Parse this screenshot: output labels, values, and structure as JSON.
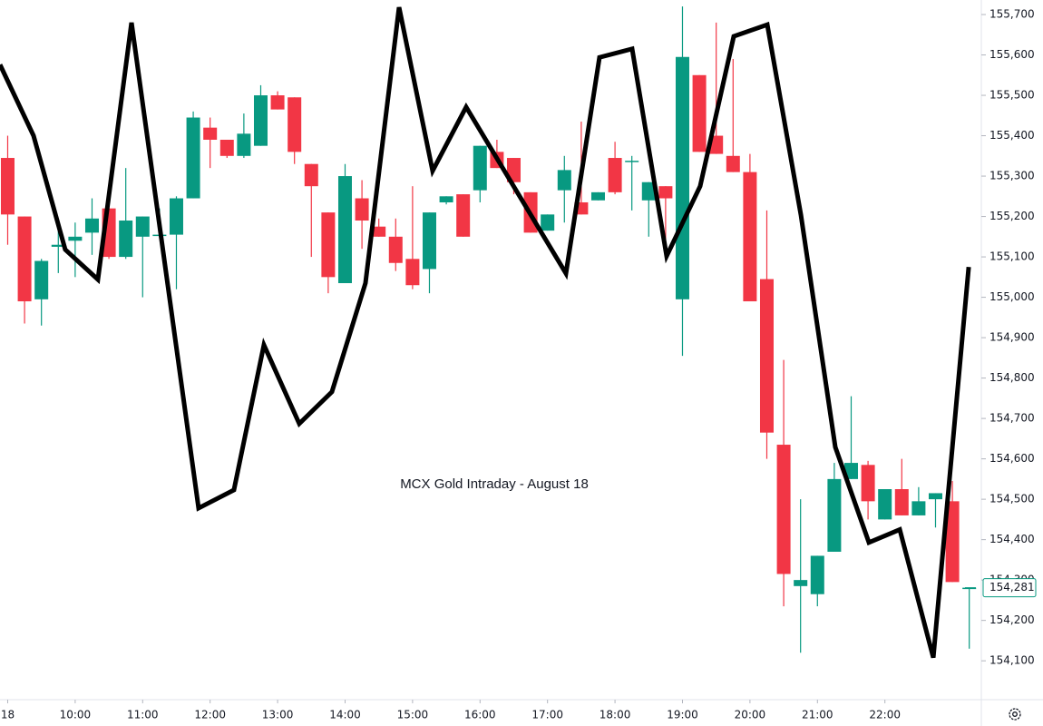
{
  "chart_data": {
    "type": "candlestick",
    "title": "MCX Gold Intraday - August 18",
    "up_color": "#089981",
    "down_color": "#f23645",
    "xlim": [
      8.886,
      23.402
    ],
    "ylim": [
      154006,
      155736
    ],
    "xticks": [
      {
        "value": 9,
        "label": "18"
      },
      {
        "value": 10,
        "label": "10:00"
      },
      {
        "value": 11,
        "label": "11:00"
      },
      {
        "value": 12,
        "label": "12:00"
      },
      {
        "value": 13,
        "label": "13:00"
      },
      {
        "value": 14,
        "label": "14:00"
      },
      {
        "value": 15,
        "label": "15:00"
      },
      {
        "value": 16,
        "label": "16:00"
      },
      {
        "value": 17,
        "label": "17:00"
      },
      {
        "value": 18,
        "label": "18:00"
      },
      {
        "value": 19,
        "label": "19:00"
      },
      {
        "value": 20,
        "label": "20:00"
      },
      {
        "value": 21,
        "label": "21:00"
      },
      {
        "value": 22,
        "label": "22:00"
      }
    ],
    "yticks": [
      {
        "value": 154100,
        "label": "154,100"
      },
      {
        "value": 154200,
        "label": "154,200"
      },
      {
        "value": 154300,
        "label": "154,300"
      },
      {
        "value": 154400,
        "label": "154,400"
      },
      {
        "value": 154500,
        "label": "154,500"
      },
      {
        "value": 154600,
        "label": "154,600"
      },
      {
        "value": 154700,
        "label": "154,700"
      },
      {
        "value": 154800,
        "label": "154,800"
      },
      {
        "value": 154900,
        "label": "154,900"
      },
      {
        "value": 155000,
        "label": "155,000"
      },
      {
        "value": 155100,
        "label": "155,100"
      },
      {
        "value": 155200,
        "label": "155,200"
      },
      {
        "value": 155300,
        "label": "155,300"
      },
      {
        "value": 155400,
        "label": "155,400"
      },
      {
        "value": 155500,
        "label": "155,500"
      },
      {
        "value": 155600,
        "label": "155,600"
      },
      {
        "value": 155700,
        "label": "155,700"
      }
    ],
    "last_price": {
      "value": 154281,
      "label": "154,281"
    },
    "candles": {
      "x": [
        9,
        9.25,
        9.5,
        9.75,
        10,
        10.25,
        10.5,
        10.75,
        11,
        11.25,
        11.5,
        11.75,
        12,
        12.25,
        12.5,
        12.75,
        13,
        13.25,
        13.5,
        13.75,
        14,
        14.25,
        14.5,
        14.75,
        15,
        15.25,
        15.5,
        15.75,
        16,
        16.25,
        16.5,
        16.75,
        17,
        17.25,
        17.5,
        17.75,
        18,
        18.25,
        18.5,
        18.75,
        19,
        19.25,
        19.5,
        19.75,
        20,
        20.25,
        20.5,
        20.75,
        21,
        21.25,
        21.5,
        21.75,
        22,
        22.25,
        22.5,
        22.75,
        23,
        23.25
      ],
      "open": [
        155345,
        155200,
        154995,
        155125,
        155140,
        155160,
        155220,
        155100,
        155150,
        155155,
        155155,
        155245,
        155420,
        155390,
        155350,
        155375,
        155500,
        155495,
        155330,
        155210,
        155035,
        155245,
        155175,
        155150,
        155095,
        155070,
        155235,
        155255,
        155265,
        155360,
        155345,
        155260,
        155165,
        155265,
        155235,
        155240,
        155345,
        155335,
        155240,
        155275,
        154995,
        155550,
        155400,
        155350,
        155310,
        155045,
        154635,
        154285,
        154265,
        154370,
        154550,
        154585,
        154450,
        154525,
        154460,
        154500,
        154495,
        154280
      ],
      "high": [
        155400,
        155200,
        155095,
        155185,
        155185,
        155245,
        155225,
        155320,
        155200,
        155220,
        155250,
        155460,
        155445,
        155390,
        155455,
        155525,
        155510,
        155495,
        155330,
        155210,
        155330,
        155290,
        155195,
        155195,
        155275,
        155210,
        155250,
        155255,
        155375,
        155390,
        155345,
        155260,
        155205,
        155350,
        155435,
        155260,
        155385,
        155350,
        155285,
        155275,
        155720,
        155550,
        155680,
        155590,
        155355,
        155215,
        154845,
        154500,
        154360,
        154590,
        154755,
        154595,
        154525,
        154600,
        154530,
        154515,
        154545,
        154281
      ],
      "low": [
        155130,
        154935,
        154930,
        155060,
        155050,
        155105,
        155095,
        155095,
        155000,
        155150,
        155020,
        155245,
        155320,
        155345,
        155345,
        155375,
        155465,
        155330,
        155100,
        155010,
        155035,
        155120,
        155150,
        155065,
        155020,
        155010,
        155230,
        155150,
        155235,
        155320,
        155255,
        155160,
        155165,
        155185,
        155205,
        155240,
        155255,
        155215,
        155150,
        155100,
        154855,
        155360,
        155355,
        155310,
        154990,
        154600,
        154235,
        154120,
        154235,
        154370,
        154550,
        154450,
        154450,
        154460,
        154460,
        154430,
        154295,
        154130
      ],
      "close": [
        155205,
        154990,
        155090,
        155130,
        155150,
        155195,
        155100,
        155190,
        155200,
        155155,
        155245,
        155445,
        155390,
        155350,
        155405,
        155500,
        155465,
        155360,
        155275,
        155050,
        155300,
        155190,
        155150,
        155085,
        155030,
        155210,
        155250,
        155150,
        155375,
        155320,
        155285,
        155160,
        155205,
        155315,
        155205,
        155260,
        155260,
        155338,
        155285,
        155245,
        155595,
        155360,
        155355,
        155310,
        154990,
        154665,
        154315,
        154300,
        154360,
        154550,
        154590,
        154495,
        154525,
        154460,
        154495,
        154515,
        154295,
        154281
      ]
    },
    "line": {
      "color": "#000000",
      "x": [
        8.886,
        9.383,
        9.853,
        10.337,
        10.835,
        11.829,
        12.353,
        12.797,
        13.321,
        13.805,
        14.302,
        14.8,
        15.297,
        15.794,
        17.273,
        17.77,
        18.254,
        18.765,
        19.262,
        19.76,
        20.257,
        20.755,
        21.265,
        21.763,
        22.22,
        22.717,
        23.242
      ],
      "values": [
        155576,
        155400,
        155118,
        155044,
        155680,
        154478,
        154523,
        154882,
        154687,
        154766,
        155035,
        155718,
        155313,
        155471,
        155059,
        155594,
        155615,
        155102,
        155275,
        155646,
        155675,
        155204,
        154629,
        154393,
        154425,
        154108,
        155075
      ]
    }
  }
}
